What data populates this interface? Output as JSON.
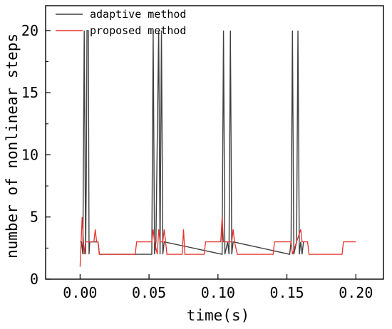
{
  "chart_data": {
    "type": "line",
    "title": "",
    "xlabel": "time(s)",
    "ylabel": "number of nonlinear steps",
    "xlim": [
      -0.025,
      0.22
    ],
    "ylim": [
      0,
      22
    ],
    "x_ticks": [
      0.0,
      0.05,
      0.1,
      0.15,
      0.2
    ],
    "x_tick_labels": [
      "0.00",
      "0.05",
      "0.10",
      "0.15",
      "0.20"
    ],
    "y_ticks": [
      0,
      5,
      10,
      15,
      20
    ],
    "y_tick_labels": [
      "0",
      "5",
      "10",
      "15",
      "20"
    ],
    "grid": false,
    "legend_position": "top-left",
    "series": [
      {
        "name": "adaptive method",
        "color": "#404040",
        "points": [
          [
            0.0,
            3
          ],
          [
            0.001,
            3
          ],
          [
            0.002,
            2
          ],
          [
            0.003,
            20
          ],
          [
            0.004,
            2
          ],
          [
            0.0045,
            8
          ],
          [
            0.005,
            20
          ],
          [
            0.006,
            20
          ],
          [
            0.0065,
            2
          ],
          [
            0.007,
            3
          ],
          [
            0.008,
            3
          ],
          [
            0.013,
            3
          ],
          [
            0.014,
            2
          ],
          [
            0.052,
            2
          ],
          [
            0.053,
            20
          ],
          [
            0.054,
            2
          ],
          [
            0.055,
            3
          ],
          [
            0.057,
            20
          ],
          [
            0.058,
            2
          ],
          [
            0.059,
            20
          ],
          [
            0.06,
            2
          ],
          [
            0.061,
            3
          ],
          [
            0.103,
            2
          ],
          [
            0.104,
            20
          ],
          [
            0.105,
            2
          ],
          [
            0.107,
            3
          ],
          [
            0.108,
            2
          ],
          [
            0.109,
            20
          ],
          [
            0.11,
            2
          ],
          [
            0.111,
            3
          ],
          [
            0.152,
            2
          ],
          [
            0.153,
            3
          ],
          [
            0.154,
            20
          ],
          [
            0.155,
            2
          ],
          [
            0.157,
            3
          ],
          [
            0.158,
            20
          ],
          [
            0.159,
            2
          ],
          [
            0.16,
            3
          ],
          [
            0.161,
            2
          ],
          [
            0.162,
            3
          ]
        ]
      },
      {
        "name": "proposed method",
        "color": "#e8322c",
        "points": [
          [
            0.0,
            1
          ],
          [
            0.0015,
            5
          ],
          [
            0.0025,
            3
          ],
          [
            0.003,
            2
          ],
          [
            0.004,
            3
          ],
          [
            0.01,
            3
          ],
          [
            0.011,
            4
          ],
          [
            0.012,
            3
          ],
          [
            0.013,
            3
          ],
          [
            0.014,
            2
          ],
          [
            0.04,
            2
          ],
          [
            0.041,
            3
          ],
          [
            0.051,
            3
          ],
          [
            0.052,
            3
          ],
          [
            0.053,
            4
          ],
          [
            0.054,
            3
          ],
          [
            0.056,
            2
          ],
          [
            0.057,
            4
          ],
          [
            0.058,
            3
          ],
          [
            0.06,
            3
          ],
          [
            0.061,
            4
          ],
          [
            0.062,
            3
          ],
          [
            0.063,
            2
          ],
          [
            0.074,
            2
          ],
          [
            0.075,
            4
          ],
          [
            0.076,
            2
          ],
          [
            0.09,
            2
          ],
          [
            0.091,
            3
          ],
          [
            0.101,
            3
          ],
          [
            0.102,
            3
          ],
          [
            0.103,
            5
          ],
          [
            0.104,
            3
          ],
          [
            0.11,
            3
          ],
          [
            0.111,
            4
          ],
          [
            0.112,
            3
          ],
          [
            0.114,
            2
          ],
          [
            0.14,
            2
          ],
          [
            0.141,
            3
          ],
          [
            0.152,
            3
          ],
          [
            0.153,
            3
          ],
          [
            0.154,
            2
          ],
          [
            0.16,
            4
          ],
          [
            0.161,
            3
          ],
          [
            0.165,
            3
          ],
          [
            0.166,
            2
          ],
          [
            0.19,
            2
          ],
          [
            0.191,
            3
          ],
          [
            0.2,
            3
          ]
        ]
      }
    ]
  }
}
